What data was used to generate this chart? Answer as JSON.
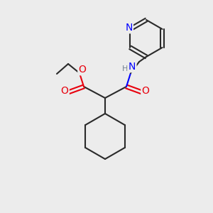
{
  "bg_color": "#ececec",
  "bond_color": "#2a2a2a",
  "bond_width": 1.5,
  "O_color": "#e8000d",
  "N_color": "#0000ff",
  "H_color": "#708090",
  "font_size": 9,
  "atoms": {
    "N_label": "N",
    "H_label": "H",
    "O1_label": "O",
    "O2_label": "O"
  }
}
